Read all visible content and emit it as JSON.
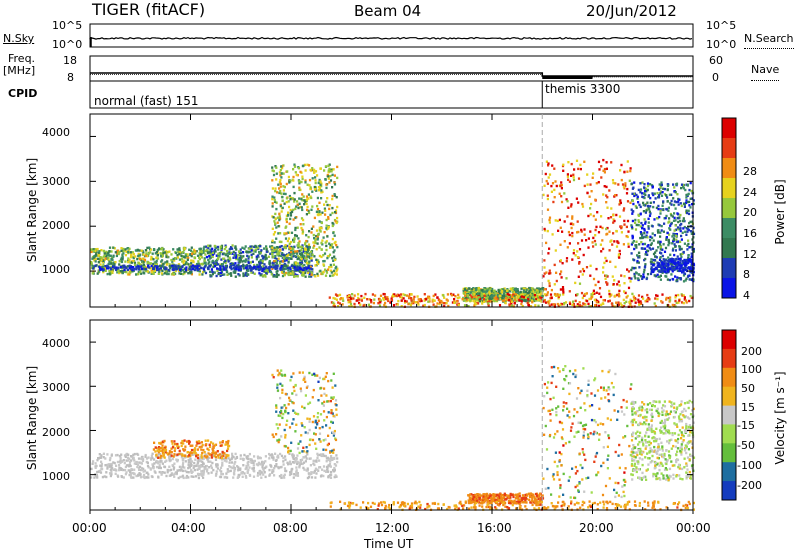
{
  "header": {
    "title": "TIGER (fitACF)",
    "beam": "Beam 04",
    "date": "20/Jun/2012"
  },
  "top_panels": {
    "nsky_label": "N.Sky",
    "nsky_ticks": [
      "10^5",
      "10^0"
    ],
    "nsearch_label": "N.Search",
    "nsearch_ticks": [
      "10^5",
      "10^0"
    ],
    "freq_label": "Freq.",
    "freq_unit": "[MHz]",
    "freq_ticks": [
      "18",
      "8"
    ],
    "nave_label": "Nave",
    "nave_ticks": [
      "60",
      "0"
    ],
    "cpid_label": "CPID",
    "cpid_modes": [
      "normal (fast) 151",
      "themis 3300"
    ]
  },
  "chart_data": [
    {
      "type": "heatmap",
      "name": "power",
      "ylabel": "Slant Range [km]",
      "ylim": [
        200,
        4500
      ],
      "yticks": [
        "4000",
        "3000",
        "2000",
        "1000"
      ],
      "colorbar_label": "Power [dB]",
      "colorbar_ticks": [
        "28",
        "24",
        "20",
        "16",
        "12",
        "8",
        "4"
      ],
      "colorbar_colors": [
        "#0a14e6",
        "#1e3cb4",
        "#327850",
        "#3c8c64",
        "#96c83c",
        "#e6d21e",
        "#f08c14",
        "#e63c14",
        "#dc0000"
      ],
      "regions": [
        {
          "x": [
            0,
            4.5
          ],
          "y": [
            950,
            1550
          ],
          "level": 0.55
        },
        {
          "x": [
            4.5,
            8.8
          ],
          "y": [
            900,
            1600
          ],
          "level": 0.7
        },
        {
          "x": [
            7.2,
            9.8
          ],
          "y": [
            900,
            3400
          ],
          "level": 0.5
        },
        {
          "x": [
            14.8,
            18
          ],
          "y": [
            350,
            650
          ],
          "level": 0.55
        },
        {
          "x": [
            21.5,
            24
          ],
          "y": [
            800,
            3000
          ],
          "level": 0.75
        }
      ]
    },
    {
      "type": "heatmap",
      "name": "velocity",
      "ylabel": "Slant Range [km]",
      "ylim": [
        200,
        4500
      ],
      "yticks": [
        "4000",
        "3000",
        "2000",
        "1000"
      ],
      "colorbar_label": "Velocity [m s⁻¹]",
      "colorbar_ticks": [
        "200",
        "100",
        "50",
        "15",
        "-15",
        "-50",
        "-100",
        "-200"
      ],
      "colorbar_colors": [
        "#143cbe",
        "#1e6ea0",
        "#64be3c",
        "#a0dc50",
        "#c8c8c8",
        "#f0b41e",
        "#f08c14",
        "#e63c14",
        "#dc0000"
      ]
    }
  ],
  "xaxis": {
    "label": "Time UT",
    "ticks": [
      "00:00",
      "04:00",
      "08:00",
      "12:00",
      "16:00",
      "20:00",
      "00:00"
    ],
    "xlim": [
      0,
      24
    ],
    "mode_change_hour": 18
  }
}
